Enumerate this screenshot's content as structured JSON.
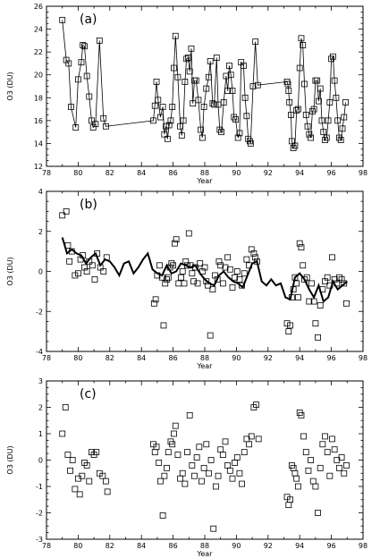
{
  "chart_data": [
    {
      "type": "line",
      "panel_label": "(a)",
      "xlabel": "Year",
      "ylabel": "O3 (DU)",
      "xlim": [
        78,
        98
      ],
      "ylim": [
        12,
        26
      ],
      "xticks": [
        78,
        80,
        82,
        84,
        86,
        88,
        90,
        92,
        94,
        96,
        98
      ],
      "yticks": [
        12,
        14,
        16,
        18,
        20,
        22,
        24,
        26
      ],
      "series": [
        {
          "marker": "square",
          "connected": true,
          "x": [
            79.0,
            79.25,
            79.4,
            79.55,
            79.85,
            80.0,
            80.2,
            80.3,
            80.4,
            80.55,
            80.7,
            80.85,
            80.95,
            81.1,
            81.35,
            81.6,
            81.75,
            84.75,
            84.85,
            84.95,
            85.05,
            85.2,
            85.35,
            85.45,
            85.55,
            85.65,
            85.75,
            85.85,
            85.95,
            86.05,
            86.15,
            86.3,
            86.45,
            86.55,
            86.65,
            86.75,
            86.85,
            86.95,
            87.05,
            87.15,
            87.25,
            87.35,
            87.45,
            87.6,
            87.75,
            87.85,
            87.95,
            88.1,
            88.25,
            88.35,
            88.5,
            88.6,
            88.75,
            88.85,
            88.95,
            89.05,
            89.2,
            89.35,
            89.45,
            89.55,
            89.65,
            89.75,
            89.85,
            89.95,
            90.1,
            90.2,
            90.3,
            90.45,
            90.55,
            90.65,
            90.75,
            90.85,
            90.9,
            91.05,
            91.2,
            91.35,
            93.2,
            93.25,
            93.3,
            93.35,
            93.45,
            93.5,
            93.6,
            93.7,
            93.8,
            93.9,
            94.0,
            94.1,
            94.2,
            94.3,
            94.4,
            94.5,
            94.6,
            94.7,
            94.8,
            94.9,
            95.0,
            95.1,
            95.2,
            95.3,
            95.4,
            95.5,
            95.6,
            95.7,
            95.8,
            95.9,
            96.0,
            96.1,
            96.2,
            96.3,
            96.4,
            96.5,
            96.6,
            96.7,
            96.8,
            96.9
          ],
          "y": [
            24.8,
            21.3,
            21.0,
            17.2,
            15.4,
            19.6,
            21.1,
            22.6,
            22.5,
            19.9,
            18.1,
            16.0,
            15.4,
            15.7,
            23.0,
            16.2,
            15.5,
            16.0,
            17.3,
            19.4,
            17.8,
            16.3,
            17.2,
            14.8,
            15.5,
            14.4,
            15.6,
            16.0,
            17.2,
            20.6,
            23.4,
            19.8,
            15.5,
            14.7,
            16.0,
            19.4,
            21.4,
            21.5,
            20.3,
            22.3,
            17.5,
            19.5,
            19.5,
            17.8,
            15.2,
            14.5,
            17.2,
            18.8,
            19.8,
            21.2,
            17.5,
            17.4,
            21.5,
            17.4,
            15.2,
            15.0,
            17.6,
            19.9,
            18.6,
            20.8,
            20.0,
            18.6,
            16.3,
            16.1,
            14.5,
            14.9,
            21.1,
            20.8,
            18.0,
            16.4,
            14.4,
            14.2,
            14.0,
            19.0,
            22.9,
            19.1,
            19.4,
            19.2,
            18.6,
            17.6,
            16.5,
            14.2,
            13.6,
            13.8,
            16.9,
            17.0,
            20.6,
            23.2,
            22.6,
            19.2,
            16.5,
            15.5,
            14.8,
            14.5,
            16.8,
            17.0,
            19.5,
            19.5,
            17.7,
            18.8,
            16.0,
            15.0,
            14.3,
            14.5,
            16.0,
            17.6,
            21.4,
            21.6,
            19.5,
            18.0,
            16.0,
            14.5,
            14.3,
            15.3,
            16.3,
            17.6
          ]
        }
      ]
    },
    {
      "type": "scatter",
      "panel_label": "(b)",
      "xlabel": "Year",
      "ylabel": "O3 (DU)",
      "xlim": [
        78,
        98
      ],
      "ylim": [
        -4,
        4
      ],
      "xticks": [
        78,
        80,
        82,
        84,
        86,
        88,
        90,
        92,
        94,
        96,
        98
      ],
      "yticks": [
        -4,
        -2,
        0,
        2,
        4
      ],
      "series": [
        {
          "marker": "square",
          "x": [
            79.0,
            79.25,
            79.35,
            79.45,
            79.6,
            79.8,
            80.0,
            80.15,
            80.3,
            80.4,
            80.55,
            80.7,
            80.9,
            81.05,
            81.2,
            81.4,
            81.6,
            81.8,
            84.8,
            84.9,
            85.0,
            85.15,
            85.3,
            85.4,
            85.5,
            85.6,
            85.7,
            85.8,
            85.9,
            86.0,
            86.1,
            86.2,
            86.35,
            86.5,
            86.6,
            86.7,
            86.8,
            86.9,
            87.0,
            87.1,
            87.2,
            87.3,
            87.4,
            87.55,
            87.7,
            87.85,
            88.0,
            88.1,
            88.2,
            88.35,
            88.5,
            88.65,
            88.8,
            88.9,
            89.0,
            89.15,
            89.3,
            89.45,
            89.6,
            89.75,
            89.9,
            90.05,
            90.2,
            90.35,
            90.5,
            90.65,
            90.8,
            90.95,
            91.1,
            91.2,
            91.3,
            93.2,
            93.3,
            93.4,
            93.5,
            93.6,
            93.7,
            93.8,
            93.9,
            94.0,
            94.1,
            94.2,
            94.3,
            94.45,
            94.6,
            94.75,
            94.9,
            95.0,
            95.15,
            95.3,
            95.45,
            95.6,
            95.75,
            95.9,
            96.05,
            96.2,
            96.35,
            96.5,
            96.65,
            96.8,
            96.95
          ],
          "y": [
            2.8,
            3.0,
            1.3,
            0.5,
            1.0,
            -0.2,
            -0.1,
            0.6,
            0.8,
            0.2,
            0.0,
            0.5,
            0.3,
            -0.4,
            0.9,
            0.2,
            0.0,
            0.7,
            -1.6,
            -1.4,
            -0.2,
            0.3,
            -0.3,
            -2.7,
            -0.6,
            -0.4,
            -0.3,
            0.2,
            0.4,
            0.3,
            1.4,
            1.6,
            -0.6,
            -0.3,
            0.0,
            -0.6,
            0.5,
            0.3,
            1.9,
            0.3,
            -0.1,
            -0.5,
            0.2,
            -0.6,
            0.4,
            0.0,
            0.2,
            -0.5,
            -0.7,
            -3.2,
            -0.9,
            -0.2,
            -0.4,
            0.5,
            0.3,
            -0.6,
            0.2,
            0.7,
            0.1,
            -0.8,
            -0.3,
            0.0,
            -0.4,
            -0.7,
            -0.1,
            0.6,
            0.3,
            1.1,
            0.9,
            0.7,
            0.5,
            -2.6,
            -3.0,
            -2.7,
            -1.3,
            -0.9,
            -0.3,
            -0.6,
            -1.3,
            1.4,
            1.2,
            0.3,
            -0.4,
            -0.3,
            -1.5,
            -0.6,
            -1.5,
            -2.6,
            -3.3,
            -1.7,
            -0.9,
            -0.5,
            -0.3,
            -0.7,
            0.7,
            -0.4,
            -0.6,
            -0.3,
            -0.4,
            -0.6,
            -1.6
          ]
        },
        {
          "marker": "none",
          "style": "thick-line",
          "x": [
            79.0,
            79.3,
            79.6,
            79.9,
            80.2,
            80.5,
            80.8,
            81.1,
            81.4,
            81.7,
            82.0,
            82.3,
            82.6,
            82.9,
            83.2,
            83.5,
            83.8,
            84.1,
            84.4,
            84.7,
            85.0,
            85.3,
            85.6,
            85.9,
            86.2,
            86.5,
            86.8,
            87.1,
            87.4,
            87.7,
            88.0,
            88.3,
            88.6,
            88.9,
            89.2,
            89.5,
            89.8,
            90.1,
            90.4,
            90.7,
            91.0,
            91.3,
            91.6,
            91.9,
            92.2,
            92.5,
            92.8,
            93.1,
            93.4,
            93.7,
            94.0,
            94.3,
            94.6,
            94.9,
            95.2,
            95.5,
            95.8,
            96.1,
            96.4,
            96.7,
            97.0
          ],
          "y": [
            1.7,
            0.9,
            1.1,
            0.9,
            0.8,
            0.4,
            0.7,
            0.9,
            0.3,
            0.6,
            0.5,
            0.2,
            -0.2,
            0.4,
            0.5,
            -0.1,
            0.2,
            0.6,
            0.9,
            0.1,
            -0.1,
            -0.2,
            0.3,
            -0.1,
            0.0,
            0.4,
            0.3,
            0.2,
            0.3,
            -0.1,
            -0.4,
            -0.6,
            -0.7,
            -0.2,
            0.0,
            -0.3,
            -0.5,
            -0.6,
            -0.8,
            -0.2,
            0.4,
            0.5,
            -0.5,
            -0.7,
            -0.4,
            -0.7,
            -0.6,
            -1.3,
            -1.4,
            -0.3,
            -0.1,
            -0.4,
            -0.9,
            -1.3,
            -0.7,
            -1.5,
            -1.3,
            -0.5,
            -0.9,
            -0.7,
            -0.5
          ]
        }
      ]
    },
    {
      "type": "scatter",
      "panel_label": "(c)",
      "xlabel": "Year",
      "ylabel": "O3 (DU)",
      "xlim": [
        78,
        98
      ],
      "ylim": [
        -3,
        3
      ],
      "xticks": [
        78,
        80,
        82,
        84,
        86,
        88,
        90,
        92,
        94,
        96,
        98
      ],
      "yticks": [
        -3,
        -2,
        -1,
        0,
        1,
        2,
        3
      ],
      "series": [
        {
          "marker": "square",
          "x": [
            79.0,
            79.2,
            79.35,
            79.5,
            79.65,
            79.8,
            80.0,
            80.1,
            80.25,
            80.4,
            80.55,
            80.7,
            80.85,
            81.0,
            81.15,
            81.35,
            81.55,
            81.75,
            81.85,
            84.75,
            84.85,
            84.95,
            85.1,
            85.2,
            85.35,
            85.45,
            85.6,
            85.7,
            85.85,
            85.95,
            86.05,
            86.15,
            86.3,
            86.45,
            86.6,
            86.75,
            86.9,
            87.05,
            87.2,
            87.35,
            87.5,
            87.65,
            87.8,
            87.95,
            88.1,
            88.25,
            88.4,
            88.55,
            88.7,
            88.85,
            89.0,
            89.15,
            89.3,
            89.45,
            89.6,
            89.75,
            89.9,
            90.05,
            90.2,
            90.35,
            90.5,
            90.65,
            90.8,
            90.95,
            91.1,
            91.25,
            91.4,
            93.2,
            93.3,
            93.4,
            93.5,
            93.6,
            93.7,
            93.8,
            93.9,
            94.0,
            94.1,
            94.25,
            94.4,
            94.55,
            94.7,
            94.85,
            95.0,
            95.15,
            95.3,
            95.45,
            95.6,
            95.75,
            95.9,
            96.05,
            96.2,
            96.35,
            96.5,
            96.65,
            96.8,
            96.95
          ],
          "y": [
            1.0,
            2.0,
            0.2,
            -0.4,
            0.0,
            -1.1,
            -0.7,
            -1.3,
            -0.6,
            -0.1,
            -0.2,
            -0.8,
            0.3,
            0.2,
            0.3,
            -0.5,
            -0.6,
            -0.8,
            -1.2,
            0.6,
            0.3,
            0.5,
            -0.1,
            -0.8,
            -2.1,
            -0.6,
            -0.3,
            0.3,
            0.7,
            0.6,
            1.0,
            1.3,
            0.2,
            -0.7,
            -0.5,
            -0.9,
            0.3,
            1.7,
            -0.2,
            -0.6,
            0.1,
            0.5,
            -0.8,
            -0.3,
            0.6,
            -0.5,
            0.0,
            -2.6,
            -1.0,
            -0.6,
            0.4,
            0.2,
            0.7,
            -0.2,
            -0.4,
            -0.7,
            -0.1,
            0.1,
            -0.5,
            -0.9,
            0.3,
            0.8,
            0.6,
            0.9,
            2.0,
            2.1,
            0.8,
            -1.4,
            -1.7,
            -1.5,
            -0.2,
            -0.3,
            -0.5,
            -0.7,
            -1.0,
            1.8,
            1.7,
            0.9,
            0.3,
            -0.4,
            0.0,
            -0.8,
            -1.0,
            -2.0,
            -0.3,
            0.6,
            0.9,
            0.3,
            -0.6,
            0.8,
            0.4,
            0.0,
            -0.3,
            0.1,
            -0.5,
            -0.2
          ]
        }
      ]
    }
  ]
}
